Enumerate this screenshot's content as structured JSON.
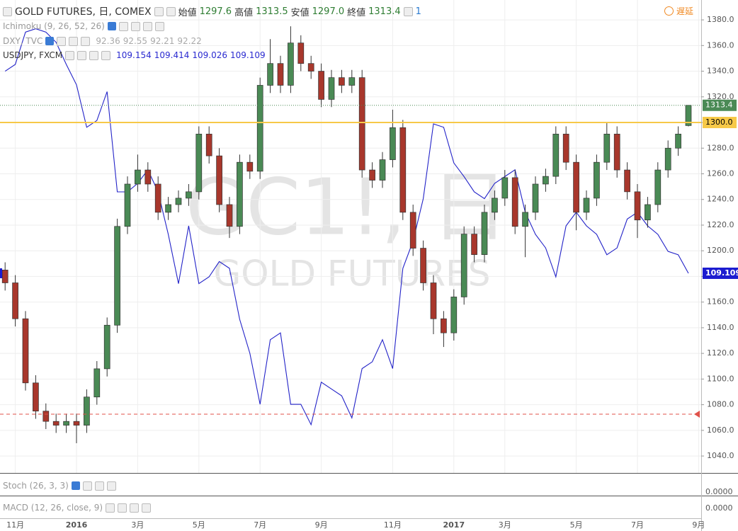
{
  "header": {
    "symbol": "GOLD FUTURES, 日, COMEX",
    "open_label": "始値",
    "open": "1297.6",
    "high_label": "高値",
    "high": "1313.5",
    "low_label": "安値",
    "low": "1297.0",
    "close_label": "終値",
    "close": "1313.4",
    "alerts": "1",
    "delay": "遅延"
  },
  "studies": [
    {
      "name": "Ichimoku (9, 26, 52, 26)",
      "values": []
    },
    {
      "name": "DXY, TVC",
      "values": [
        "92.36",
        "92.55",
        "92.21",
        "92.22"
      ]
    },
    {
      "name": "USDJPY, FXCM",
      "values": [
        "109.154",
        "109.414",
        "109.026",
        "109.109"
      ]
    }
  ],
  "watermark": {
    "symbol": "GC1!, 日",
    "description": "GOLD FUTURES"
  },
  "panes": [
    {
      "name": "Stoch (26, 3, 3)",
      "axis_label": "0.0000"
    },
    {
      "name": "MACD (12, 26, close, 9)",
      "axis_label": "0.0000"
    }
  ],
  "chart_data": {
    "type": "candlestick",
    "categories": [
      null,
      "11月",
      null,
      null,
      null,
      null,
      null,
      "2016",
      null,
      null,
      null,
      null,
      null,
      "3月",
      null,
      null,
      null,
      null,
      null,
      "5月",
      null,
      null,
      null,
      null,
      null,
      "7月",
      null,
      null,
      null,
      null,
      null,
      "9月",
      null,
      null,
      null,
      null,
      null,
      null,
      "11月",
      null,
      null,
      null,
      null,
      null,
      "2017",
      null,
      null,
      null,
      null,
      "3月",
      null,
      null,
      null,
      null,
      null,
      null,
      "5月",
      null,
      null,
      null,
      null,
      null,
      "7月",
      null,
      null,
      null,
      null,
      null,
      "9月"
    ],
    "series": [
      {
        "type": "candlestick",
        "up_color": "#4a8a55",
        "down_color": "#a8372c",
        "values": [
          [
            1185,
            1191,
            1169,
            1175
          ],
          [
            1175,
            1181,
            1141,
            1147
          ],
          [
            1147,
            1153,
            1091,
            1097
          ],
          [
            1097,
            1103,
            1069,
            1075
          ],
          [
            1075,
            1081,
            1061,
            1067
          ],
          [
            1067,
            1073,
            1058,
            1064
          ],
          [
            1064,
            1073,
            1058,
            1067
          ],
          [
            1067,
            1073,
            1050,
            1064
          ],
          [
            1064,
            1092,
            1058,
            1086
          ],
          [
            1086,
            1114,
            1080,
            1108
          ],
          [
            1108,
            1148,
            1102,
            1142
          ],
          [
            1142,
            1225,
            1136,
            1219
          ],
          [
            1219,
            1258,
            1213,
            1252
          ],
          [
            1252,
            1275,
            1246,
            1263
          ],
          [
            1263,
            1269,
            1246,
            1252
          ],
          [
            1252,
            1258,
            1224,
            1230
          ],
          [
            1230,
            1242,
            1224,
            1236
          ],
          [
            1236,
            1247,
            1230,
            1241
          ],
          [
            1241,
            1252,
            1235,
            1246
          ],
          [
            1246,
            1297,
            1240,
            1291
          ],
          [
            1291,
            1297,
            1268,
            1274
          ],
          [
            1274,
            1280,
            1230,
            1236
          ],
          [
            1236,
            1242,
            1210,
            1219
          ],
          [
            1219,
            1275,
            1213,
            1269
          ],
          [
            1269,
            1275,
            1256,
            1262
          ],
          [
            1262,
            1335,
            1256,
            1329
          ],
          [
            1329,
            1365,
            1323,
            1346
          ],
          [
            1346,
            1352,
            1323,
            1329
          ],
          [
            1329,
            1375,
            1323,
            1362
          ],
          [
            1362,
            1368,
            1340,
            1346
          ],
          [
            1346,
            1352,
            1334,
            1340
          ],
          [
            1340,
            1346,
            1312,
            1318
          ],
          [
            1318,
            1341,
            1312,
            1335
          ],
          [
            1335,
            1341,
            1323,
            1329
          ],
          [
            1329,
            1341,
            1323,
            1335
          ],
          [
            1335,
            1341,
            1257,
            1263
          ],
          [
            1263,
            1269,
            1249,
            1255
          ],
          [
            1255,
            1277,
            1249,
            1271
          ],
          [
            1271,
            1310,
            1265,
            1296
          ],
          [
            1296,
            1302,
            1224,
            1230
          ],
          [
            1230,
            1236,
            1196,
            1202
          ],
          [
            1202,
            1208,
            1169,
            1175
          ],
          [
            1175,
            1181,
            1135,
            1147
          ],
          [
            1147,
            1153,
            1125,
            1136
          ],
          [
            1136,
            1170,
            1130,
            1164
          ],
          [
            1164,
            1219,
            1158,
            1213
          ],
          [
            1213,
            1219,
            1191,
            1197
          ],
          [
            1197,
            1236,
            1191,
            1230
          ],
          [
            1230,
            1247,
            1224,
            1241
          ],
          [
            1241,
            1263,
            1235,
            1257
          ],
          [
            1257,
            1263,
            1213,
            1219
          ],
          [
            1219,
            1236,
            1195,
            1230
          ],
          [
            1230,
            1258,
            1224,
            1252
          ],
          [
            1252,
            1264,
            1246,
            1258
          ],
          [
            1258,
            1297,
            1252,
            1291
          ],
          [
            1291,
            1297,
            1263,
            1269
          ],
          [
            1269,
            1275,
            1216,
            1230
          ],
          [
            1230,
            1247,
            1224,
            1241
          ],
          [
            1241,
            1275,
            1235,
            1269
          ],
          [
            1269,
            1300,
            1263,
            1291
          ],
          [
            1291,
            1297,
            1257,
            1263
          ],
          [
            1263,
            1269,
            1240,
            1246
          ],
          [
            1246,
            1252,
            1210,
            1224
          ],
          [
            1224,
            1242,
            1218,
            1236
          ],
          [
            1236,
            1269,
            1230,
            1263
          ],
          [
            1263,
            1286,
            1257,
            1280
          ],
          [
            1280,
            1297,
            1274,
            1291
          ],
          [
            1297.6,
            1313.5,
            1297.0,
            1313.4
          ],
          null
        ]
      },
      {
        "type": "line",
        "axis": "y2",
        "color": "#2323c8",
        "values": [
          121.0,
          121.4,
          123.3,
          123.5,
          123.3,
          122.7,
          121.4,
          120.2,
          117.7,
          118.1,
          119.8,
          113.9,
          113.9,
          114.4,
          115.2,
          113.9,
          111.4,
          108.5,
          111.9,
          108.5,
          108.9,
          109.8,
          109.4,
          106.4,
          104.4,
          101.4,
          105.2,
          105.6,
          101.4,
          101.4,
          100.2,
          102.7,
          102.3,
          101.9,
          100.6,
          103.5,
          103.9,
          105.2,
          103.5,
          109.4,
          111.0,
          113.5,
          117.9,
          117.7,
          115.6,
          114.8,
          113.9,
          113.5,
          114.4,
          114.8,
          115.2,
          112.7,
          111.4,
          110.6,
          108.9,
          111.9,
          112.7,
          111.9,
          111.4,
          110.2,
          110.6,
          112.3,
          112.7,
          111.9,
          111.4,
          110.4,
          110.2,
          109.109,
          null
        ]
      }
    ],
    "ylim": [
      1026.8,
      1395.5
    ],
    "yticks": [
      {
        "value": 1040,
        "label": "1040.0"
      },
      {
        "value": 1060,
        "label": "1060.0"
      },
      {
        "value": 1080,
        "label": "1080.0"
      },
      {
        "value": 1100,
        "label": "1100.0"
      },
      {
        "value": 1120,
        "label": "1120.0"
      },
      {
        "value": 1140,
        "label": "1140.0"
      },
      {
        "value": 1160,
        "label": "1160.0"
      },
      {
        "value": 1180,
        "label": "1180.0"
      },
      {
        "value": 1200,
        "label": "1200.0"
      },
      {
        "value": 1220,
        "label": "1220.0"
      },
      {
        "value": 1240,
        "label": "1240.0"
      },
      {
        "value": 1260,
        "label": "1260.0"
      },
      {
        "value": 1280,
        "label": "1280.0"
      },
      {
        "value": 1300,
        "label": "1300.0"
      },
      {
        "value": 1320,
        "label": "1320.0"
      },
      {
        "value": 1340,
        "label": "1340.0"
      },
      {
        "value": 1360,
        "label": "1360.0"
      },
      {
        "value": 1380,
        "label": "1380.0"
      }
    ],
    "y2lim": [
      97.36,
      125.19
    ],
    "grid": true,
    "price_lines": [
      {
        "value": 1300,
        "label": "1300.0",
        "color": "#f7c948",
        "style": "solid"
      },
      {
        "value": 1313.4,
        "label": "1313.4",
        "color": "#4a8a55",
        "style": "dotted"
      },
      {
        "value": 1072.6,
        "color": "#e0524a",
        "style": "dashed"
      }
    ],
    "y2_price_lines": [
      {
        "value": 109.109,
        "label": "109.109",
        "color": "#1c1cd0"
      }
    ]
  }
}
